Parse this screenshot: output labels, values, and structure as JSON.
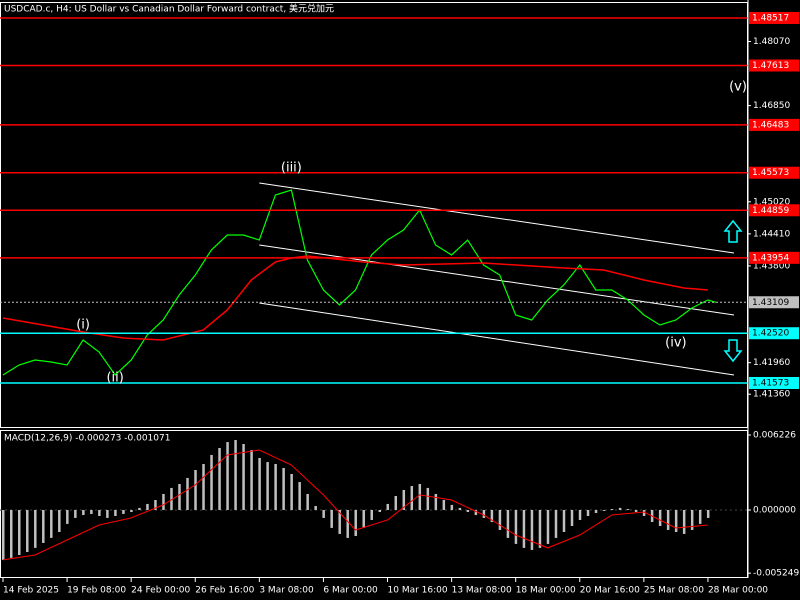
{
  "chart_data": [
    {
      "type": "line",
      "title": "USDCAD.c, H4:  US Dollar vs Canadian Dollar Forward contract, 美元兑加元",
      "xlim": [
        0,
        186
      ],
      "ylim": [
        1.40717,
        1.48859
      ],
      "yticks": [
        {
          "value": 1.4807,
          "label": "1.48070"
        },
        {
          "value": 1.4685,
          "label": "1.46850"
        },
        {
          "value": 1.4502,
          "label": "1.45020"
        },
        {
          "value": 1.4441,
          "label": "1.44410"
        },
        {
          "value": 1.438,
          "label": "1.43800"
        },
        {
          "value": 1.4196,
          "label": "1.41960"
        },
        {
          "value": 1.4136,
          "label": "1.41360"
        }
      ],
      "series": [
        {
          "color": "#00ff00",
          "x": [
            0,
            4,
            8,
            12,
            16,
            20,
            24,
            28,
            32,
            36,
            40,
            44,
            48,
            52,
            56,
            60,
            64,
            68,
            72,
            76,
            80,
            84,
            88,
            92,
            96,
            100,
            104,
            108,
            112,
            116,
            120,
            124,
            128,
            132,
            136,
            140,
            144,
            148,
            152,
            156,
            160,
            164,
            168,
            172,
            176,
            178
          ],
          "values": [
            1.41725,
            1.41915,
            1.4201,
            1.41972,
            1.41915,
            1.42391,
            1.42162,
            1.41725,
            1.4201,
            1.42486,
            1.42771,
            1.43247,
            1.43627,
            1.44103,
            1.44388,
            1.44388,
            1.44293,
            1.45149,
            1.45245,
            1.43913,
            1.43342,
            1.43057,
            1.43342,
            1.44008,
            1.44293,
            1.44484,
            1.44864,
            1.44198,
            1.44008,
            1.44293,
            1.43818,
            1.43627,
            1.42866,
            1.42771,
            1.43152,
            1.43437,
            1.43818,
            1.43342,
            1.43342,
            1.43152,
            1.42866,
            1.42676,
            1.42771,
            1.42999,
            1.43152,
            1.43109
          ]
        },
        {
          "color": "#ff0000",
          "x": [
            0,
            10,
            20,
            30,
            40,
            50,
            56,
            62,
            68,
            72,
            76,
            90,
            100,
            120,
            140,
            150,
            160,
            170,
            176
          ],
          "values": [
            1.42809,
            1.42676,
            1.42543,
            1.42429,
            1.42391,
            1.42581,
            1.42961,
            1.43532,
            1.43875,
            1.43951,
            1.43989,
            1.43875,
            1.43818,
            1.43856,
            1.43761,
            1.43722,
            1.43532,
            1.4338,
            1.43342
          ]
        }
      ],
      "levels": [
        {
          "value": 1.48517,
          "label": "1.48517",
          "color": "#ff0000"
        },
        {
          "value": 1.47613,
          "label": "1.47613",
          "color": "#ff0000"
        },
        {
          "value": 1.46483,
          "label": "1.46483",
          "color": "#ff0000"
        },
        {
          "value": 1.45573,
          "label": "1.45573",
          "color": "#ff0000"
        },
        {
          "value": 1.44859,
          "label": "1.44859",
          "color": "#ff0000"
        },
        {
          "value": 1.43954,
          "label": "1.43954",
          "color": "#ff0000"
        },
        {
          "value": 1.4252,
          "label": "1.42520",
          "color": "#00ffff"
        },
        {
          "value": 1.41573,
          "label": "1.41573",
          "color": "#00ffff"
        }
      ],
      "current_price": {
        "value": 1.43109,
        "label": "1.43109",
        "color": "#c0c0c0"
      },
      "channel": [
        {
          "color": "#ffffff",
          "x": [
            64,
            182.5
          ],
          "values": [
            1.45378,
            1.44046
          ]
        },
        {
          "color": "#ffffff",
          "x": [
            64,
            182.5
          ],
          "values": [
            1.44198,
            1.42866
          ]
        },
        {
          "color": "#ffffff",
          "x": [
            64,
            182.5
          ],
          "values": [
            1.43095,
            1.41725
          ]
        }
      ],
      "annotations": [
        {
          "text": "(i)",
          "x": 20,
          "y": 1.42676
        },
        {
          "text": "(ii)",
          "x": 28,
          "y": 1.41668
        },
        {
          "text": "(iii)",
          "x": 72,
          "y": 1.45663
        },
        {
          "text": "(iv)",
          "x": 168,
          "y": 1.42334
        },
        {
          "text": "(v)",
          "x": 183.5,
          "y": 1.47204
        }
      ]
    },
    {
      "type": "bar",
      "title": "MACD(12,26,9) -0.000273 -0.001071",
      "xlim": [
        0,
        186
      ],
      "ylim": [
        -0.00565,
        0.00656
      ],
      "yticks": [
        {
          "value": 0.006226,
          "label": "0.006226"
        },
        {
          "value": 0,
          "label": "0.000000"
        },
        {
          "value": -0.005249,
          "label": "-0.005249"
        }
      ],
      "xticks": [
        {
          "value": 0,
          "label": "14 Feb 2025"
        },
        {
          "value": 16,
          "label": "19 Feb 08:00"
        },
        {
          "value": 32,
          "label": "24 Feb 00:00"
        },
        {
          "value": 48,
          "label": "26 Feb 16:00"
        },
        {
          "value": 64,
          "label": "3 Mar 08:00"
        },
        {
          "value": 80,
          "label": "6 Mar 00:00"
        },
        {
          "value": 96,
          "label": "10 Mar 16:00"
        },
        {
          "value": 112,
          "label": "13 Mar 08:00"
        },
        {
          "value": 128,
          "label": "18 Mar 00:00"
        },
        {
          "value": 144,
          "label": "20 Mar 16:00"
        },
        {
          "value": 160,
          "label": "25 Mar 08:00"
        },
        {
          "value": 176,
          "label": "28 Mar 00:00"
        }
      ],
      "series": [
        {
          "color": "#c0c0c0",
          "x": [
            0,
            2,
            4,
            6,
            8,
            10,
            12,
            14,
            16,
            18,
            20,
            22,
            24,
            26,
            28,
            30,
            32,
            34,
            36,
            38,
            40,
            42,
            44,
            46,
            48,
            50,
            52,
            54,
            56,
            58,
            60,
            62,
            64,
            66,
            68,
            70,
            72,
            74,
            76,
            78,
            80,
            82,
            84,
            86,
            88,
            90,
            92,
            94,
            96,
            98,
            100,
            102,
            104,
            106,
            108,
            110,
            112,
            114,
            116,
            118,
            120,
            122,
            124,
            126,
            128,
            130,
            132,
            134,
            136,
            138,
            140,
            142,
            144,
            146,
            148,
            150,
            152,
            154,
            156,
            158,
            160,
            162,
            164,
            166,
            168,
            170,
            172,
            174,
            176
          ],
          "values": [
            -0.00415,
            -0.00398,
            -0.00374,
            -0.00349,
            -0.00315,
            -0.00274,
            -0.00232,
            -0.00183,
            -0.00116,
            -0.00066,
            -0.00042,
            -0.00033,
            -0.0005,
            -0.00066,
            -0.0005,
            -0.00033,
            -0.00017,
            0.00017,
            0.0005,
            0.00083,
            0.00133,
            0.00183,
            0.00216,
            0.00266,
            0.00332,
            0.00382,
            0.00457,
            0.00515,
            0.00564,
            0.00581,
            0.00548,
            0.00498,
            0.00432,
            0.00398,
            0.00382,
            0.00349,
            0.00299,
            0.00232,
            0.00133,
            0.00033,
            -0.00066,
            -0.00149,
            -0.00199,
            -0.00232,
            -0.00216,
            -0.00149,
            -0.00083,
            -0.00017,
            0.0005,
            0.00116,
            0.00166,
            0.00199,
            0.00216,
            0.00183,
            0.00133,
            0.00083,
            0.00042,
            0.00017,
            -0.00017,
            -0.00042,
            -0.00066,
            -0.001,
            -0.00166,
            -0.00232,
            -0.00282,
            -0.00315,
            -0.00332,
            -0.00315,
            -0.00282,
            -0.00232,
            -0.00183,
            -0.00133,
            -0.00083,
            -0.0005,
            -0.00025,
            -8e-05,
            8e-05,
            0.00017,
            8e-05,
            -0.00017,
            -0.0005,
            -0.001,
            -0.00133,
            -0.00166,
            -0.00183,
            -0.00199,
            -0.00166,
            -0.00116,
            -0.00066
          ]
        }
      ],
      "signal": {
        "color": "#ff0000",
        "x": [
          0,
          8,
          16,
          24,
          32,
          40,
          48,
          56,
          64,
          72,
          80,
          88,
          96,
          104,
          112,
          120,
          128,
          136,
          144,
          152,
          160,
          168,
          176
        ],
        "values": [
          -0.00415,
          -0.00374,
          -0.00249,
          -0.00125,
          -0.00066,
          0.00042,
          0.00208,
          0.00457,
          0.00498,
          0.00374,
          0.00125,
          -0.00166,
          -0.00083,
          0.00125,
          0.00083,
          -0.00042,
          -0.00208,
          -0.00315,
          -0.00208,
          -0.00042,
          -0.00017,
          -0.0015,
          -0.00125
        ]
      }
    }
  ]
}
